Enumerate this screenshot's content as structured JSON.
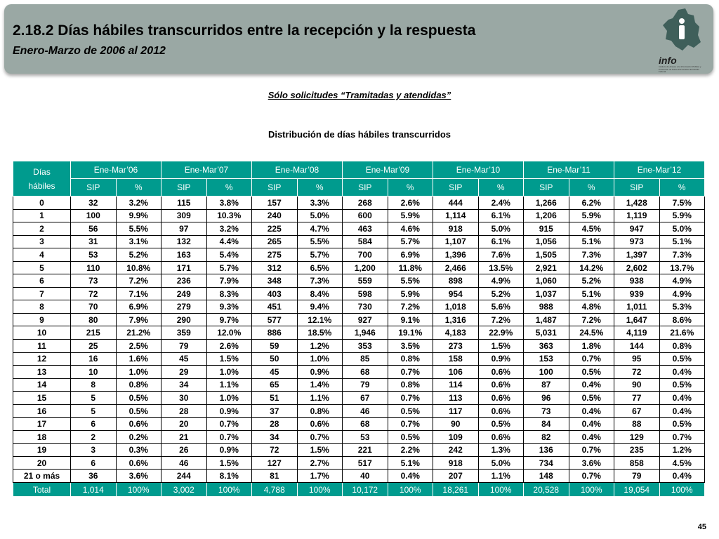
{
  "header": {
    "title": "2.18.2 Días hábiles transcurridos entre la recepción y la respuesta",
    "subtitle": "Enero-Marzo de 2006 al 2012",
    "logo_text": "info",
    "logo_caption": "Instituto de Acceso a la Información Pública y Protección de Datos Personales del Distrito Federal"
  },
  "note": "Sólo solicitudes “Tramitadas y atendidas”",
  "caption": "Distribución de días hábiles transcurridos",
  "table": {
    "row_header": "Días hábiles",
    "periods": [
      "Ene-Mar’06",
      "Ene-Mar’07",
      "Ene-Mar’08",
      "Ene-Mar’09",
      "Ene-Mar’10",
      "Ene-Mar’11",
      "Ene-Mar’12"
    ],
    "sub_headers": [
      "SIP",
      "%"
    ],
    "rows": [
      [
        "0",
        "32",
        "3.2%",
        "115",
        "3.8%",
        "157",
        "3.3%",
        "268",
        "2.6%",
        "444",
        "2.4%",
        "1,266",
        "6.2%",
        "1,428",
        "7.5%"
      ],
      [
        "1",
        "100",
        "9.9%",
        "309",
        "10.3%",
        "240",
        "5.0%",
        "600",
        "5.9%",
        "1,114",
        "6.1%",
        "1,206",
        "5.9%",
        "1,119",
        "5.9%"
      ],
      [
        "2",
        "56",
        "5.5%",
        "97",
        "3.2%",
        "225",
        "4.7%",
        "463",
        "4.6%",
        "918",
        "5.0%",
        "915",
        "4.5%",
        "947",
        "5.0%"
      ],
      [
        "3",
        "31",
        "3.1%",
        "132",
        "4.4%",
        "265",
        "5.5%",
        "584",
        "5.7%",
        "1,107",
        "6.1%",
        "1,056",
        "5.1%",
        "973",
        "5.1%"
      ],
      [
        "4",
        "53",
        "5.2%",
        "163",
        "5.4%",
        "275",
        "5.7%",
        "700",
        "6.9%",
        "1,396",
        "7.6%",
        "1,505",
        "7.3%",
        "1,397",
        "7.3%"
      ],
      [
        "5",
        "110",
        "10.8%",
        "171",
        "5.7%",
        "312",
        "6.5%",
        "1,200",
        "11.8%",
        "2,466",
        "13.5%",
        "2,921",
        "14.2%",
        "2,602",
        "13.7%"
      ],
      [
        "6",
        "73",
        "7.2%",
        "236",
        "7.9%",
        "348",
        "7.3%",
        "559",
        "5.5%",
        "898",
        "4.9%",
        "1,060",
        "5.2%",
        "938",
        "4.9%"
      ],
      [
        "7",
        "72",
        "7.1%",
        "249",
        "8.3%",
        "403",
        "8.4%",
        "598",
        "5.9%",
        "954",
        "5.2%",
        "1,037",
        "5.1%",
        "939",
        "4.9%"
      ],
      [
        "8",
        "70",
        "6.9%",
        "279",
        "9.3%",
        "451",
        "9.4%",
        "730",
        "7.2%",
        "1,018",
        "5.6%",
        "988",
        "4.8%",
        "1,011",
        "5.3%"
      ],
      [
        "9",
        "80",
        "7.9%",
        "290",
        "9.7%",
        "577",
        "12.1%",
        "927",
        "9.1%",
        "1,316",
        "7.2%",
        "1,487",
        "7.2%",
        "1,647",
        "8.6%"
      ],
      [
        "10",
        "215",
        "21.2%",
        "359",
        "12.0%",
        "886",
        "18.5%",
        "1,946",
        "19.1%",
        "4,183",
        "22.9%",
        "5,031",
        "24.5%",
        "4,119",
        "21.6%"
      ],
      [
        "11",
        "25",
        "2.5%",
        "79",
        "2.6%",
        "59",
        "1.2%",
        "353",
        "3.5%",
        "273",
        "1.5%",
        "363",
        "1.8%",
        "144",
        "0.8%"
      ],
      [
        "12",
        "16",
        "1.6%",
        "45",
        "1.5%",
        "50",
        "1.0%",
        "85",
        "0.8%",
        "158",
        "0.9%",
        "153",
        "0.7%",
        "95",
        "0.5%"
      ],
      [
        "13",
        "10",
        "1.0%",
        "29",
        "1.0%",
        "45",
        "0.9%",
        "68",
        "0.7%",
        "106",
        "0.6%",
        "100",
        "0.5%",
        "72",
        "0.4%"
      ],
      [
        "14",
        "8",
        "0.8%",
        "34",
        "1.1%",
        "65",
        "1.4%",
        "79",
        "0.8%",
        "114",
        "0.6%",
        "87",
        "0.4%",
        "90",
        "0.5%"
      ],
      [
        "15",
        "5",
        "0.5%",
        "30",
        "1.0%",
        "51",
        "1.1%",
        "67",
        "0.7%",
        "113",
        "0.6%",
        "96",
        "0.5%",
        "77",
        "0.4%"
      ],
      [
        "16",
        "5",
        "0.5%",
        "28",
        "0.9%",
        "37",
        "0.8%",
        "46",
        "0.5%",
        "117",
        "0.6%",
        "73",
        "0.4%",
        "67",
        "0.4%"
      ],
      [
        "17",
        "6",
        "0.6%",
        "20",
        "0.7%",
        "28",
        "0.6%",
        "68",
        "0.7%",
        "90",
        "0.5%",
        "84",
        "0.4%",
        "88",
        "0.5%"
      ],
      [
        "18",
        "2",
        "0.2%",
        "21",
        "0.7%",
        "34",
        "0.7%",
        "53",
        "0.5%",
        "109",
        "0.6%",
        "82",
        "0.4%",
        "129",
        "0.7%"
      ],
      [
        "19",
        "3",
        "0.3%",
        "26",
        "0.9%",
        "72",
        "1.5%",
        "221",
        "2.2%",
        "242",
        "1.3%",
        "136",
        "0.7%",
        "235",
        "1.2%"
      ],
      [
        "20",
        "6",
        "0.6%",
        "46",
        "1.5%",
        "127",
        "2.7%",
        "517",
        "5.1%",
        "918",
        "5.0%",
        "734",
        "3.6%",
        "858",
        "4.5%"
      ],
      [
        "21 o más",
        "36",
        "3.6%",
        "244",
        "8.1%",
        "81",
        "1.7%",
        "40",
        "0.4%",
        "207",
        "1.1%",
        "148",
        "0.7%",
        "79",
        "0.4%"
      ]
    ],
    "total": [
      "Total",
      "1,014",
      "100%",
      "3,002",
      "100%",
      "4,788",
      "100%",
      "10,172",
      "100%",
      "18,261",
      "100%",
      "20,528",
      "100%",
      "19,054",
      "100%"
    ]
  },
  "page_number": "45",
  "colors": {
    "header_band": "#9aa8a4",
    "table_header": "#009b8e"
  }
}
